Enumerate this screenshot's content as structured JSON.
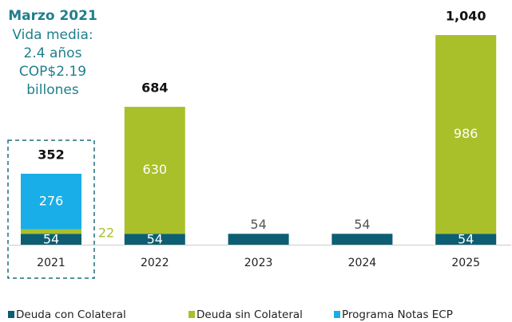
{
  "chart_data": {
    "type": "stacked_bar",
    "annotation": {
      "title": "Marzo 2021",
      "lines": [
        "Vida media:",
        "2.4 años",
        "COP$2.19",
        "billones"
      ]
    },
    "categories": [
      "2021",
      "2022",
      "2023",
      "2024",
      "2025"
    ],
    "series": [
      {
        "name": "Deuda con Colateral",
        "color": "#0d5e72",
        "values": [
          54,
          54,
          54,
          54,
          54
        ]
      },
      {
        "name": "Deuda sin Colateral",
        "color": "#a9c02b",
        "values": [
          22,
          630,
          null,
          null,
          986
        ]
      },
      {
        "name": "Programa Notas ECP",
        "color": "#1aaee8",
        "values": [
          276,
          null,
          null,
          null,
          null
        ]
      }
    ],
    "totals": [
      352,
      684,
      null,
      null,
      1040
    ],
    "totals_labels": [
      "352",
      "684",
      null,
      null,
      "1,040"
    ],
    "ylim": [
      0,
      1040
    ],
    "legend": "bottom"
  }
}
